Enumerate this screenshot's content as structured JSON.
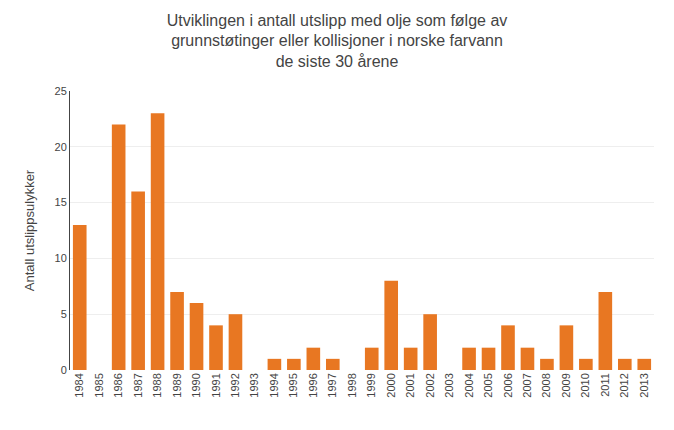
{
  "chart_data": {
    "type": "bar",
    "title": "Utviklingen i antall utslipp med olje som følge av\ngrunnstøtinger eller kollisjoner i norske farvann\nde siste 30 årene",
    "ylabel": "Antall utslippsulykker",
    "categories": [
      "1984",
      "1985",
      "1986",
      "1987",
      "1988",
      "1989",
      "1990",
      "1991",
      "1992",
      "1993",
      "1994",
      "1995",
      "1996",
      "1997",
      "1998",
      "1999",
      "2000",
      "2001",
      "2002",
      "2003",
      "2004",
      "2005",
      "2006",
      "2007",
      "2008",
      "2009",
      "2010",
      "2011",
      "2012",
      "2013"
    ],
    "values": [
      13,
      0,
      22,
      16,
      23,
      7,
      6,
      4,
      5,
      0,
      1,
      1,
      2,
      1,
      0,
      2,
      8,
      2,
      5,
      0,
      2,
      2,
      4,
      2,
      1,
      4,
      1,
      7,
      1,
      1
    ],
    "color": "#E87722",
    "ylim": [
      0,
      25
    ],
    "yticks": [
      0,
      5,
      10,
      15,
      20,
      25
    ],
    "grid": true
  }
}
